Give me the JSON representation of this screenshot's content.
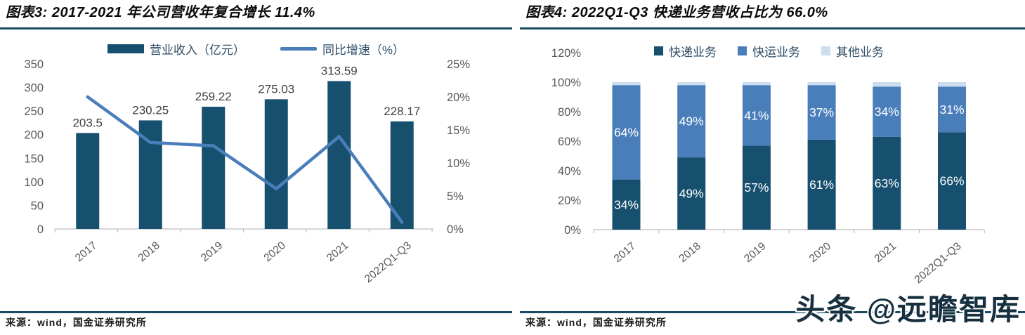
{
  "watermark": {
    "text": "头条 @远瞻智库",
    "color": "#16303F"
  },
  "footer": {
    "source_left": "来源：wind，国金证券研究所",
    "source_right": "来源：wind，国金证券研究所"
  },
  "colors": {
    "bar_dark_navy": "#17506F",
    "line_blue": "#4A7EBB",
    "light_blue": "#CBDDEF",
    "divider_navy": "#1B4A63",
    "axis_text": "#595959",
    "data_label_text": "#404040",
    "stacked_label_text": "#FFFFFF"
  },
  "chart_data": [
    {
      "type": "bar",
      "title": "图表3: 2017-2021 年公司营收年复合增长 11.4%",
      "categories": [
        "2017",
        "2018",
        "2019",
        "2020",
        "2021",
        "2022Q1-Q3"
      ],
      "series": [
        {
          "name": "营业收入（亿元）",
          "kind": "bar",
          "axis": "left",
          "color": "#17506F",
          "values": [
            203.5,
            230.25,
            259.22,
            275.03,
            313.59,
            228.17
          ],
          "labels": [
            "203.5",
            "230.25",
            "259.22",
            "275.03",
            "313.59",
            "228.17"
          ]
        },
        {
          "name": "同比增速（%）",
          "kind": "line",
          "axis": "right",
          "color": "#4A7EBB",
          "values": [
            20.0,
            13.1,
            12.6,
            6.1,
            14.0,
            1.0
          ]
        }
      ],
      "left_axis": {
        "min": 0,
        "max": 350,
        "step": 50,
        "ticks": [
          "0",
          "50",
          "100",
          "150",
          "200",
          "250",
          "300",
          "350"
        ]
      },
      "right_axis": {
        "min": 0,
        "max": 25,
        "step": 5,
        "ticks": [
          "0%",
          "5%",
          "10%",
          "15%",
          "20%",
          "25%"
        ]
      },
      "grid": false,
      "legend_position": "top"
    },
    {
      "type": "bar",
      "subtype": "stacked-percent",
      "title": "图表4: 2022Q1-Q3 快递业务营收占比为 66.0%",
      "categories": [
        "2017",
        "2018",
        "2019",
        "2020",
        "2021",
        "2022Q1-Q3"
      ],
      "series": [
        {
          "name": "快递业务",
          "color": "#17506F",
          "values": [
            34,
            49,
            57,
            61,
            63,
            66
          ],
          "labels": [
            "34%",
            "49%",
            "57%",
            "61%",
            "63%",
            "66%"
          ]
        },
        {
          "name": "快运业务",
          "color": "#4A7EBB",
          "values": [
            64,
            49,
            41,
            37,
            34,
            31
          ],
          "labels": [
            "64%",
            "49%",
            "41%",
            "37%",
            "34%",
            "31%"
          ]
        },
        {
          "name": "其他业务",
          "color": "#CBDDEF",
          "values": [
            2,
            2,
            2,
            2,
            3,
            3
          ],
          "labels": [
            "",
            "",
            "",
            "",
            "",
            ""
          ]
        }
      ],
      "y_axis": {
        "min": 0,
        "max": 120,
        "step": 20,
        "ticks": [
          "0%",
          "20%",
          "40%",
          "60%",
          "80%",
          "100%",
          "120%"
        ]
      },
      "grid": false,
      "legend_position": "top"
    }
  ]
}
